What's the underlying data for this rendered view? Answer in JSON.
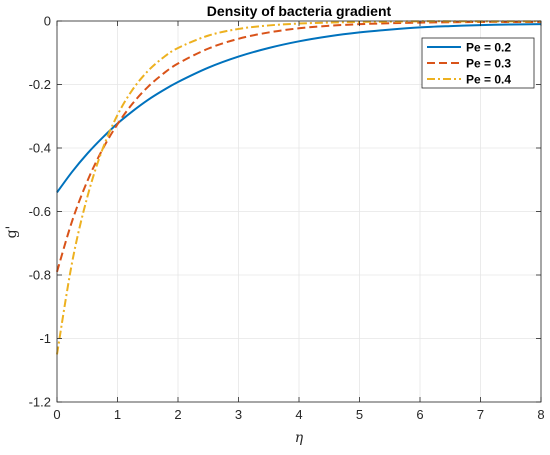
{
  "chart_data": {
    "type": "line",
    "title": "Density of bacteria gradient",
    "xlabel": "η",
    "ylabel": "g'",
    "xlim": [
      0,
      8
    ],
    "ylim": [
      -1.2,
      0
    ],
    "xticks": [
      0,
      1,
      2,
      3,
      4,
      5,
      6,
      7,
      8
    ],
    "xtick_labels": [
      "0",
      "1",
      "2",
      "3",
      "4",
      "5",
      "6",
      "7",
      "8"
    ],
    "yticks": [
      -1.2,
      -1,
      -0.8,
      -0.6,
      -0.4,
      -0.2,
      0
    ],
    "ytick_labels": [
      "-1.2",
      "-1",
      "-0.8",
      "-0.6",
      "-0.4",
      "-0.2",
      "0"
    ],
    "grid": true,
    "legend_position": "top-right",
    "x": [
      0,
      0.25,
      0.5,
      0.75,
      1,
      1.25,
      1.5,
      1.75,
      2,
      2.5,
      3,
      3.5,
      4,
      4.5,
      5,
      5.5,
      6,
      6.5,
      7,
      7.5,
      8
    ],
    "series": [
      {
        "name": "Pe = 0.2",
        "color": "#0072BD",
        "dash": "solid",
        "values": [
          -0.54,
          -0.475,
          -0.418,
          -0.368,
          -0.323,
          -0.284,
          -0.249,
          -0.219,
          -0.192,
          -0.147,
          -0.112,
          -0.085,
          -0.064,
          -0.048,
          -0.036,
          -0.027,
          -0.02,
          -0.016,
          -0.013,
          -0.011,
          -0.01
        ]
      },
      {
        "name": "Pe = 0.3",
        "color": "#D95319",
        "dash": "dashed",
        "values": [
          -0.79,
          -0.63,
          -0.505,
          -0.405,
          -0.325,
          -0.26,
          -0.208,
          -0.167,
          -0.134,
          -0.087,
          -0.056,
          -0.036,
          -0.023,
          -0.015,
          -0.01,
          -0.007,
          -0.005,
          -0.004,
          -0.003,
          -0.003,
          -0.003
        ]
      },
      {
        "name": "Pe = 0.4",
        "color": "#EDB120",
        "dash": "dashdot",
        "values": [
          -1.05,
          -0.76,
          -0.555,
          -0.405,
          -0.296,
          -0.216,
          -0.158,
          -0.116,
          -0.085,
          -0.046,
          -0.025,
          -0.014,
          -0.008,
          -0.005,
          -0.003,
          -0.002,
          -0.001,
          -0.001,
          -0.001,
          -0.001,
          -0.001
        ]
      }
    ]
  }
}
